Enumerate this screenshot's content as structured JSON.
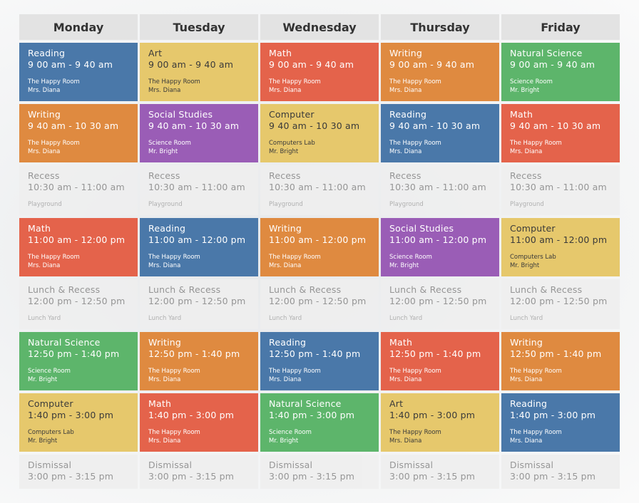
{
  "days": [
    "Monday",
    "Tuesday",
    "Wednesday",
    "Thursday",
    "Friday"
  ],
  "rows": [
    [
      {
        "subject": "Reading",
        "time": "9 00 am - 9 40 am",
        "room": "The Happy Room",
        "teacher": "Mrs. Diana",
        "color": "#4a78a9"
      },
      {
        "subject": "Art",
        "time": "9 00 am - 9 40 am",
        "room": "The Happy Room",
        "teacher": "Mrs. Diana",
        "color": "#e6c86c"
      },
      {
        "subject": "Math",
        "time": "9 00 am - 9 40 am",
        "room": "The Happy Room",
        "teacher": "Mrs. Diana",
        "color": "#e4634b"
      },
      {
        "subject": "Writing",
        "time": "9 00 am - 9 40 am",
        "room": "The Happy Room",
        "teacher": "Mrs. Diana",
        "color": "#df8a40"
      },
      {
        "subject": "Natural Science",
        "time": "9 00 am - 9 40 am",
        "room": "Science Room",
        "teacher": "Mr. Bright",
        "color": "#5db56b"
      }
    ],
    [
      {
        "subject": "Writing",
        "time": "9 40 am - 10 30 am",
        "room": "The Happy Room",
        "teacher": "Mrs. Diana",
        "color": "#df8a40"
      },
      {
        "subject": "Social Studies",
        "time": "9 40 am - 10 30 am",
        "room": "Science Room",
        "teacher": "Mr. Bright",
        "color": "#9a5db6"
      },
      {
        "subject": "Computer",
        "time": "9 40 am - 10 30 am",
        "room": "Computers Lab",
        "teacher": "Mr. Bright",
        "color": "#e6c86c"
      },
      {
        "subject": "Reading",
        "time": "9 40 am - 10 30 am",
        "room": "The Happy Room",
        "teacher": "Mrs. Diana",
        "color": "#4a78a9"
      },
      {
        "subject": "Math",
        "time": "9 40 am - 10 30 am",
        "room": "The Happy Room",
        "teacher": "Mrs. Diana",
        "color": "#e4634b"
      }
    ],
    [
      {
        "subject": "Recess",
        "time": "10:30 am - 11:00 am",
        "room": "Playground",
        "color": "#efefef"
      },
      {
        "subject": "Recess",
        "time": "10:30 am - 11:00 am",
        "room": "Playground",
        "color": "#efefef"
      },
      {
        "subject": "Recess",
        "time": "10:30 am - 11:00 am",
        "room": "Playground",
        "color": "#efefef"
      },
      {
        "subject": "Recess",
        "time": "10:30 am - 11:00 am",
        "room": "Playground",
        "color": "#efefef"
      },
      {
        "subject": "Recess",
        "time": "10:30 am - 11:00 am",
        "room": "Playground",
        "color": "#efefef"
      }
    ],
    [
      {
        "subject": "Math",
        "time": "11:00 am - 12:00 pm",
        "room": "The Happy Room",
        "teacher": "Mrs. Diana",
        "color": "#e4634b"
      },
      {
        "subject": "Reading",
        "time": "11:00 am - 12:00 pm",
        "room": "The Happy Room",
        "teacher": "Mrs. Diana",
        "color": "#4a78a9"
      },
      {
        "subject": "Writing",
        "time": "11:00 am - 12:00 pm",
        "room": "The Happy Room",
        "teacher": "Mrs. Diana",
        "color": "#df8a40"
      },
      {
        "subject": "Social Studies",
        "time": "11:00 am - 12:00 pm",
        "room": "Science Room",
        "teacher": "Mr. Bright",
        "color": "#9a5db6"
      },
      {
        "subject": "Computer",
        "time": "11:00 am - 12:00 pm",
        "room": "Computers Lab",
        "teacher": "Mr. Bright",
        "color": "#e6c86c"
      }
    ],
    [
      {
        "subject": "Lunch & Recess",
        "time": "12:00 pm - 12:50 pm",
        "room": "Lunch Yard",
        "color": "#efefef"
      },
      {
        "subject": "Lunch & Recess",
        "time": "12:00 pm - 12:50 pm",
        "room": "Lunch Yard",
        "color": "#efefef"
      },
      {
        "subject": "Lunch & Recess",
        "time": "12:00 pm - 12:50 pm",
        "room": "Lunch Yard",
        "color": "#efefef"
      },
      {
        "subject": "Lunch & Recess",
        "time": "12:00 pm - 12:50 pm",
        "room": "Lunch Yard",
        "color": "#efefef"
      },
      {
        "subject": "Lunch & Recess",
        "time": "12:00 pm - 12:50 pm",
        "room": "Lunch Yard",
        "color": "#efefef"
      }
    ],
    [
      {
        "subject": "Natural Science",
        "time": "12:50 pm - 1:40 pm",
        "room": "Science Room",
        "teacher": "Mr. Bright",
        "color": "#5db56b"
      },
      {
        "subject": "Writing",
        "time": "12:50 pm - 1:40 pm",
        "room": "The Happy Room",
        "teacher": "Mrs. Diana",
        "color": "#df8a40"
      },
      {
        "subject": "Reading",
        "time": "12:50 pm - 1:40 pm",
        "room": "The Happy Room",
        "teacher": "Mrs. Diana",
        "color": "#4a78a9"
      },
      {
        "subject": "Math",
        "time": "12:50 pm - 1:40 pm",
        "room": "The Happy Room",
        "teacher": "Mrs. Diana",
        "color": "#e4634b"
      },
      {
        "subject": "Writing",
        "time": "12:50 pm - 1:40 pm",
        "room": "The Happy Room",
        "teacher": "Mrs. Diana",
        "color": "#df8a40"
      }
    ],
    [
      {
        "subject": "Computer",
        "time": "1:40 pm - 3:00 pm",
        "room": "Computers Lab",
        "teacher": "Mr. Bright",
        "color": "#e6c86c"
      },
      {
        "subject": "Math",
        "time": "1:40 pm - 3:00 pm",
        "room": "The Happy Room",
        "teacher": "Mrs. Diana",
        "color": "#e4634b"
      },
      {
        "subject": "Natural Science",
        "time": "1:40 pm - 3:00 pm",
        "room": "Science Room",
        "teacher": "Mr. Bright",
        "color": "#5db56b"
      },
      {
        "subject": "Art",
        "time": "1:40 pm - 3:00 pm",
        "room": "The Happy Room",
        "teacher": "Mrs. Diana",
        "color": "#e6c86c"
      },
      {
        "subject": "Reading",
        "time": "1:40 pm - 3:00 pm",
        "room": "The Happy Room",
        "teacher": "Mrs. Diana",
        "color": "#4a78a9"
      }
    ],
    [
      {
        "subject": "Dismissal",
        "time": "3:00 pm - 3:15 pm",
        "color": "#efefef"
      },
      {
        "subject": "Dismissal",
        "time": "3:00 pm - 3:15 pm",
        "color": "#efefef"
      },
      {
        "subject": "Dismissal",
        "time": "3:00 pm - 3:15 pm",
        "color": "#efefef"
      },
      {
        "subject": "Dismissal",
        "time": "3:00 pm - 3:15 pm",
        "color": "#efefef"
      },
      {
        "subject": "Dismissal",
        "time": "3:00 pm - 3:15 pm",
        "color": "#efefef"
      }
    ]
  ]
}
